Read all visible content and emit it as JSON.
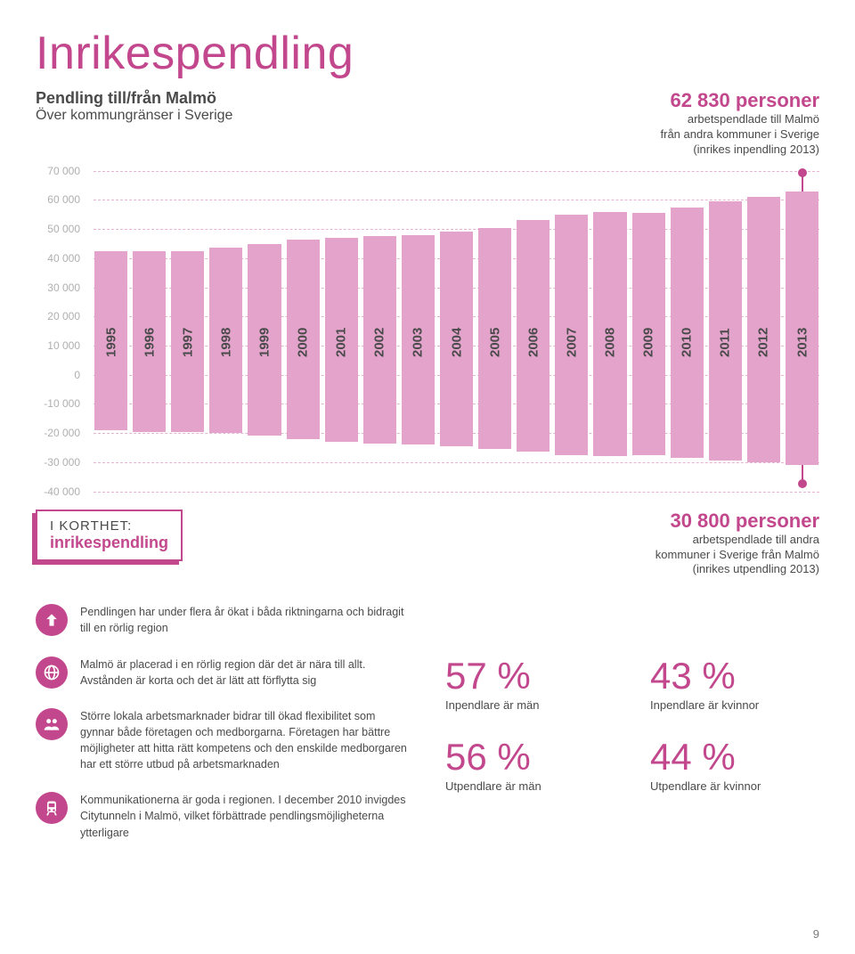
{
  "title": "Inrikespendling",
  "subtitle": "Pendling till/från Malmö",
  "subtitle2": "Över kommungränser i Sverige",
  "callout1": {
    "number": "62 830 personer",
    "line1": "arbetspendlade till Malmö",
    "line2": "från andra kommuner i Sverige",
    "line3": "(inrikes inpendling 2013)"
  },
  "chart": {
    "type": "bar",
    "y_min": -40000,
    "y_max": 70000,
    "y_tick_step": 10000,
    "y_ticks": [
      "70 000",
      "60 000",
      "50 000",
      "40 000",
      "30 000",
      "20 000",
      "10 000",
      "0",
      "-10 000",
      "-20 000",
      "-30 000",
      "-40 000"
    ],
    "years": [
      "1995",
      "1996",
      "1997",
      "1998",
      "1999",
      "2000",
      "2001",
      "2002",
      "2003",
      "2004",
      "2005",
      "2006",
      "2007",
      "2008",
      "2009",
      "2010",
      "2011",
      "2012",
      "2013"
    ],
    "pos_values": [
      42500,
      42500,
      42500,
      43500,
      45000,
      46500,
      47000,
      47500,
      48000,
      49000,
      50500,
      53000,
      55000,
      56000,
      55500,
      57500,
      59500,
      61000,
      62830
    ],
    "neg_values": [
      -19000,
      -19500,
      -19500,
      -20000,
      -21000,
      -22000,
      -23000,
      -23500,
      -24000,
      -24500,
      -25500,
      -26500,
      -27500,
      -28000,
      -27500,
      -28500,
      -29500,
      -30000,
      -30800
    ],
    "bar_color": "#e3a3cb",
    "grid_color": "#c2478d",
    "label_color": "#b1aeb0",
    "year_label_color": "#4a4a4a",
    "dot_color": "#c2478d"
  },
  "korthet": {
    "label": "I KORTHET:",
    "word": "inrikespendling"
  },
  "callout2": {
    "number": "30 800 personer",
    "line1": "arbetspendlade till andra",
    "line2": "kommuner i Sverige från Malmö",
    "line3": "(inrikes utpendling 2013)"
  },
  "bullets": [
    {
      "icon": "arrow-up-icon",
      "text": "Pendlingen har under flera år ökat i båda riktningarna och bidragit till en rörlig region"
    },
    {
      "icon": "globe-icon",
      "text": "Malmö är placerad i en rörlig region där det är nära till allt. Avstånden är korta och det är lätt att förflytta sig"
    },
    {
      "icon": "people-icon",
      "text": "Större lokala arbetsmarknader bidrar till ökad flexibilitet som gynnar både företagen och medborgarna. Företagen har bättre möjligheter att hitta rätt kompetens och den enskilde medborgaren har ett större utbud på arbetsmarknaden"
    },
    {
      "icon": "train-icon",
      "text": "Kommunikationerna är goda i regionen. I december 2010 invigdes Citytunneln i Malmö, vilket förbättrade pendlingsmöjligheterna ytterligare"
    }
  ],
  "stats": [
    {
      "value": "57 %",
      "label": "Inpendlare är män"
    },
    {
      "value": "43 %",
      "label": "Inpendlare är kvinnor"
    },
    {
      "value": "56 %",
      "label": "Utpendlare är män"
    },
    {
      "value": "44 %",
      "label": "Utpendlare är kvinnor"
    }
  ],
  "page_number": "9",
  "colors": {
    "accent": "#c2478d",
    "bar": "#e3a3cb",
    "text": "#4a4a4a",
    "ylabel": "#b1aeb0"
  }
}
